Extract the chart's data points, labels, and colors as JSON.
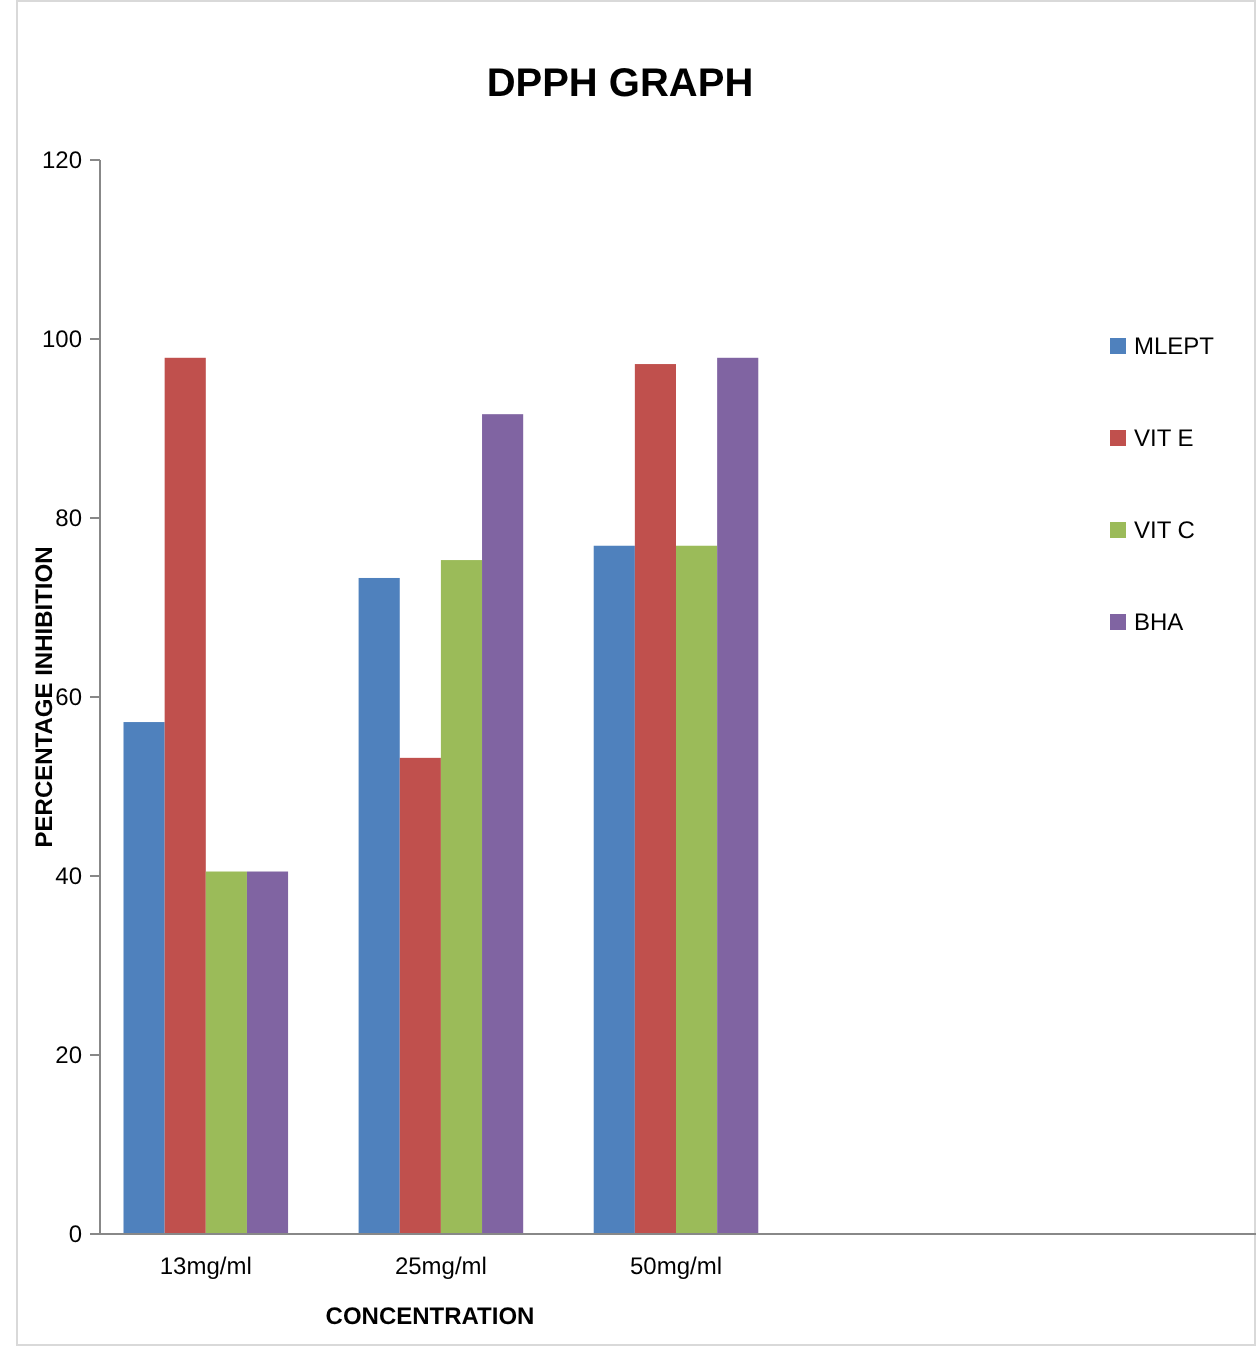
{
  "chart_data": {
    "type": "bar",
    "title": "DPPH GRAPH",
    "xlabel": "CONCENTRATION",
    "ylabel": "PERCENTAGE INHIBITION",
    "categories": [
      "13mg/ml",
      "25mg/ml",
      "50mg/ml",
      null,
      null
    ],
    "series": [
      {
        "name": "MLEPT",
        "color": "#4f81bd",
        "values": [
          57.2,
          73.3,
          76.9,
          null,
          null
        ]
      },
      {
        "name": "VIT E",
        "color": "#c0504d",
        "values": [
          97.9,
          53.2,
          97.2,
          null,
          null
        ]
      },
      {
        "name": "VIT C",
        "color": "#9bbb59",
        "values": [
          40.5,
          75.3,
          76.9,
          null,
          null
        ]
      },
      {
        "name": "BHA",
        "color": "#8064a2",
        "values": [
          40.5,
          91.6,
          97.9,
          null,
          null
        ]
      }
    ],
    "ylim": [
      0,
      120
    ],
    "yticks": [
      0,
      20,
      40,
      60,
      80,
      100,
      120
    ],
    "grid": false,
    "legend": "right"
  }
}
